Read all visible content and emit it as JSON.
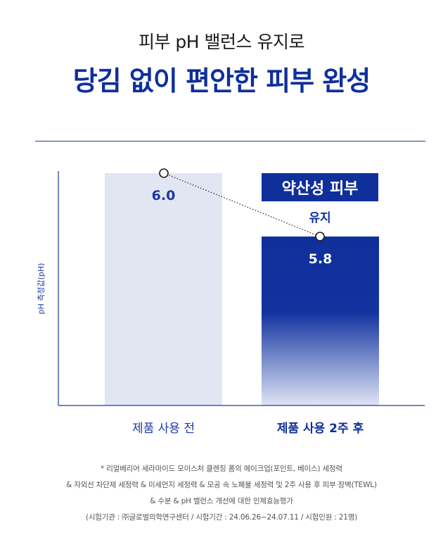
{
  "header": {
    "subtitle": "피부 pH 밸런스 유지로",
    "title": "당김 없이 편안한 피부 완성"
  },
  "chart_data": {
    "type": "bar",
    "categories": [
      "제품 사용 전",
      "제품 사용 2주 후"
    ],
    "values": [
      6.0,
      5.8
    ],
    "value_labels": [
      "6.0",
      "5.8"
    ],
    "ylabel": "pH 측정값(pH)",
    "annotation": {
      "badge": "약산성 피부",
      "text": "유지"
    },
    "legend": "none",
    "grid": false,
    "colors": {
      "before_bar": "#e2e6f3",
      "after_bar": "#0f2f9b",
      "before_value": "#1a3aa5",
      "after_value": "#ffffff",
      "badge_bg": "#0f2f9b",
      "axis": "#1a3aa5"
    }
  },
  "footnote": {
    "lines": [
      "* 리얼베리어 세라마이드 모이스처 클렌징 폼의 메이크업(포인트, 베이스) 세정력",
      "& 자외선 차단제 세정력 & 미세먼지 세정력 & 모공 속 노폐물 세정력 및 2주 사용 후 피부 장벽(TEWL)",
      "& 수분 & pH 밸런스 개선에 대한 인체효능평가",
      "(시험기관 : ㈜글로벌의학연구센터 / 시험기간 : 24.06.26~24.07.11 / 시험인원 : 21명)"
    ]
  }
}
